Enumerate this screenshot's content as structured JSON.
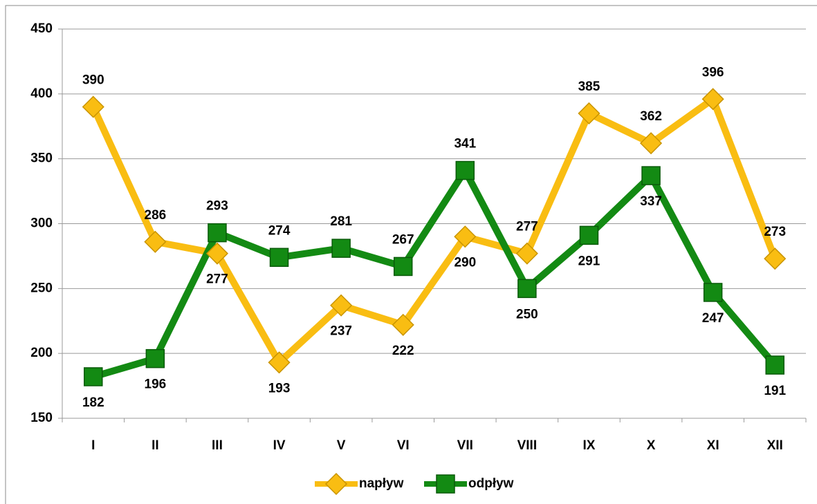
{
  "chart_data": {
    "type": "line",
    "categories": [
      "I",
      "II",
      "III",
      "IV",
      "V",
      "VI",
      "VII",
      "VIII",
      "IX",
      "X",
      "XI",
      "XII"
    ],
    "series": [
      {
        "name": "napływ",
        "color": "#f9bd12",
        "marker": "diamond",
        "values": [
          390,
          286,
          277,
          193,
          237,
          222,
          290,
          277,
          385,
          362,
          396,
          273
        ]
      },
      {
        "name": "odpływ",
        "color": "#138a13",
        "marker": "square",
        "values": [
          182,
          196,
          293,
          274,
          281,
          267,
          341,
          250,
          291,
          337,
          247,
          191
        ]
      }
    ],
    "ylim": [
      150,
      450
    ],
    "yticks": [
      150,
      200,
      250,
      300,
      350,
      400,
      450
    ],
    "grid": true,
    "legend": "bottom"
  }
}
